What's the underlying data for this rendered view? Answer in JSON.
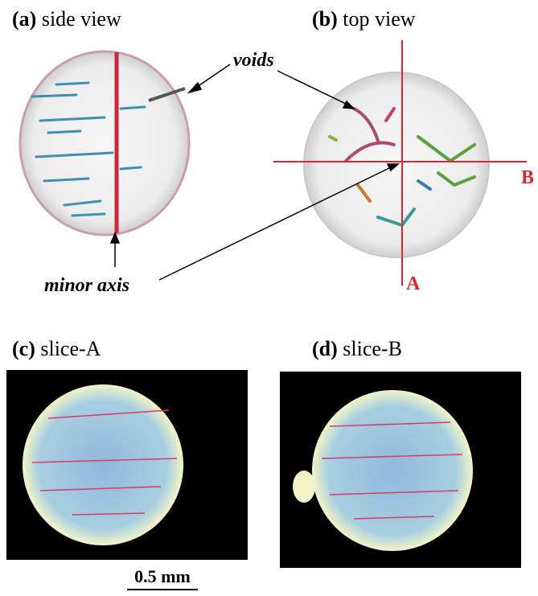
{
  "panels": [
    {
      "label": "(a)",
      "caption": "side view"
    },
    {
      "label": "(b)",
      "caption": "top view"
    },
    {
      "label": "(c)",
      "caption": "slice-A"
    },
    {
      "label": "(d)",
      "caption": "slice-B"
    }
  ],
  "annotations": {
    "voids": "voids",
    "minor_axis": "minor axis",
    "axis_a": "A",
    "axis_b": "B"
  },
  "scale_bar": "0.5 mm"
}
